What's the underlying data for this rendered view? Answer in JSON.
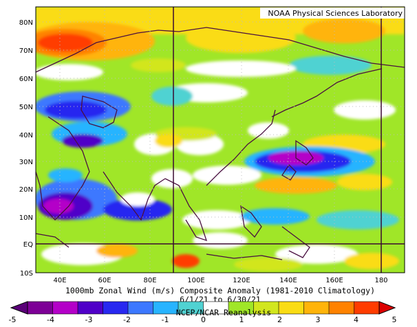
{
  "credit": "NOAA Physical Sciences Laboratory",
  "title": "1000mb Zonal Wind (m/s) Composite Anomaly (1981-2010 Climatology)",
  "dates": "6/1/21 to 6/30/21",
  "source": "NCEP/NCAR Reanalysis",
  "lat_labels": [
    "80N",
    "70N",
    "60N",
    "50N",
    "40N",
    "30N",
    "20N",
    "10N",
    "EQ",
    "10S"
  ],
  "lon_labels": [
    "40E",
    "60E",
    "80E",
    "100E",
    "120E",
    "140E",
    "160E",
    "180"
  ],
  "colorbar_labels": [
    "-5",
    "-4",
    "-3",
    "-2",
    "-1",
    "0",
    "1",
    "2",
    "3",
    "4",
    "5"
  ],
  "palette": [
    "#5a0078",
    "#7d0096",
    "#b400c8",
    "#5000c8",
    "#2828f0",
    "#3c78ff",
    "#28b4ff",
    "#50d2d2",
    "#ffffff",
    "#a0e628",
    "#d2e61e",
    "#fadc14",
    "#ffb40a",
    "#ff8200",
    "#ff3c00",
    "#dc0000"
  ],
  "grid": "dotted",
  "scale": {
    "min": -5,
    "max": 5,
    "units": "m/s"
  }
}
